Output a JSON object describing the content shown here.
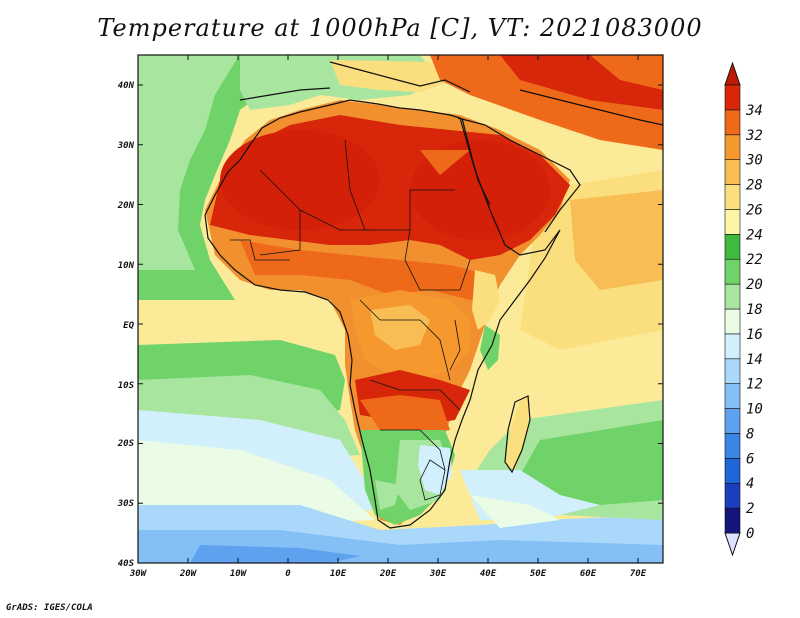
{
  "title": "Temperature at 1000hPa [C], VT: 2021083000",
  "credit": "GrADS: IGES/COLA",
  "map": {
    "lat_labels": [
      "40N",
      "30N",
      "20N",
      "10N",
      "EQ",
      "10S",
      "20S",
      "30S",
      "40S"
    ],
    "lon_labels": [
      "30W",
      "20W",
      "10W",
      "0",
      "10E",
      "20E",
      "30E",
      "40E",
      "50E",
      "60E",
      "70E"
    ],
    "lat_range": [
      -40,
      45
    ],
    "lon_range": [
      -30,
      75
    ]
  },
  "colorbar": {
    "labels": [
      "0",
      "2",
      "4",
      "6",
      "8",
      "10",
      "12",
      "14",
      "16",
      "18",
      "20",
      "22",
      "24",
      "26",
      "28",
      "30",
      "32",
      "34"
    ],
    "colors": [
      "#14147a",
      "#1a3fbf",
      "#2066d8",
      "#3a86e6",
      "#5da1ef",
      "#84bff5",
      "#a9d8fa",
      "#d2f0fc",
      "#eafbe6",
      "#a8e6a0",
      "#6fd36a",
      "#3fba3f",
      "#fbf5a6",
      "#fbdf7e",
      "#f8bd55",
      "#f5982e",
      "#ee6a1a",
      "#d8260a"
    ],
    "under_color": "#e0e0ff",
    "over_color": "#c01a05"
  }
}
